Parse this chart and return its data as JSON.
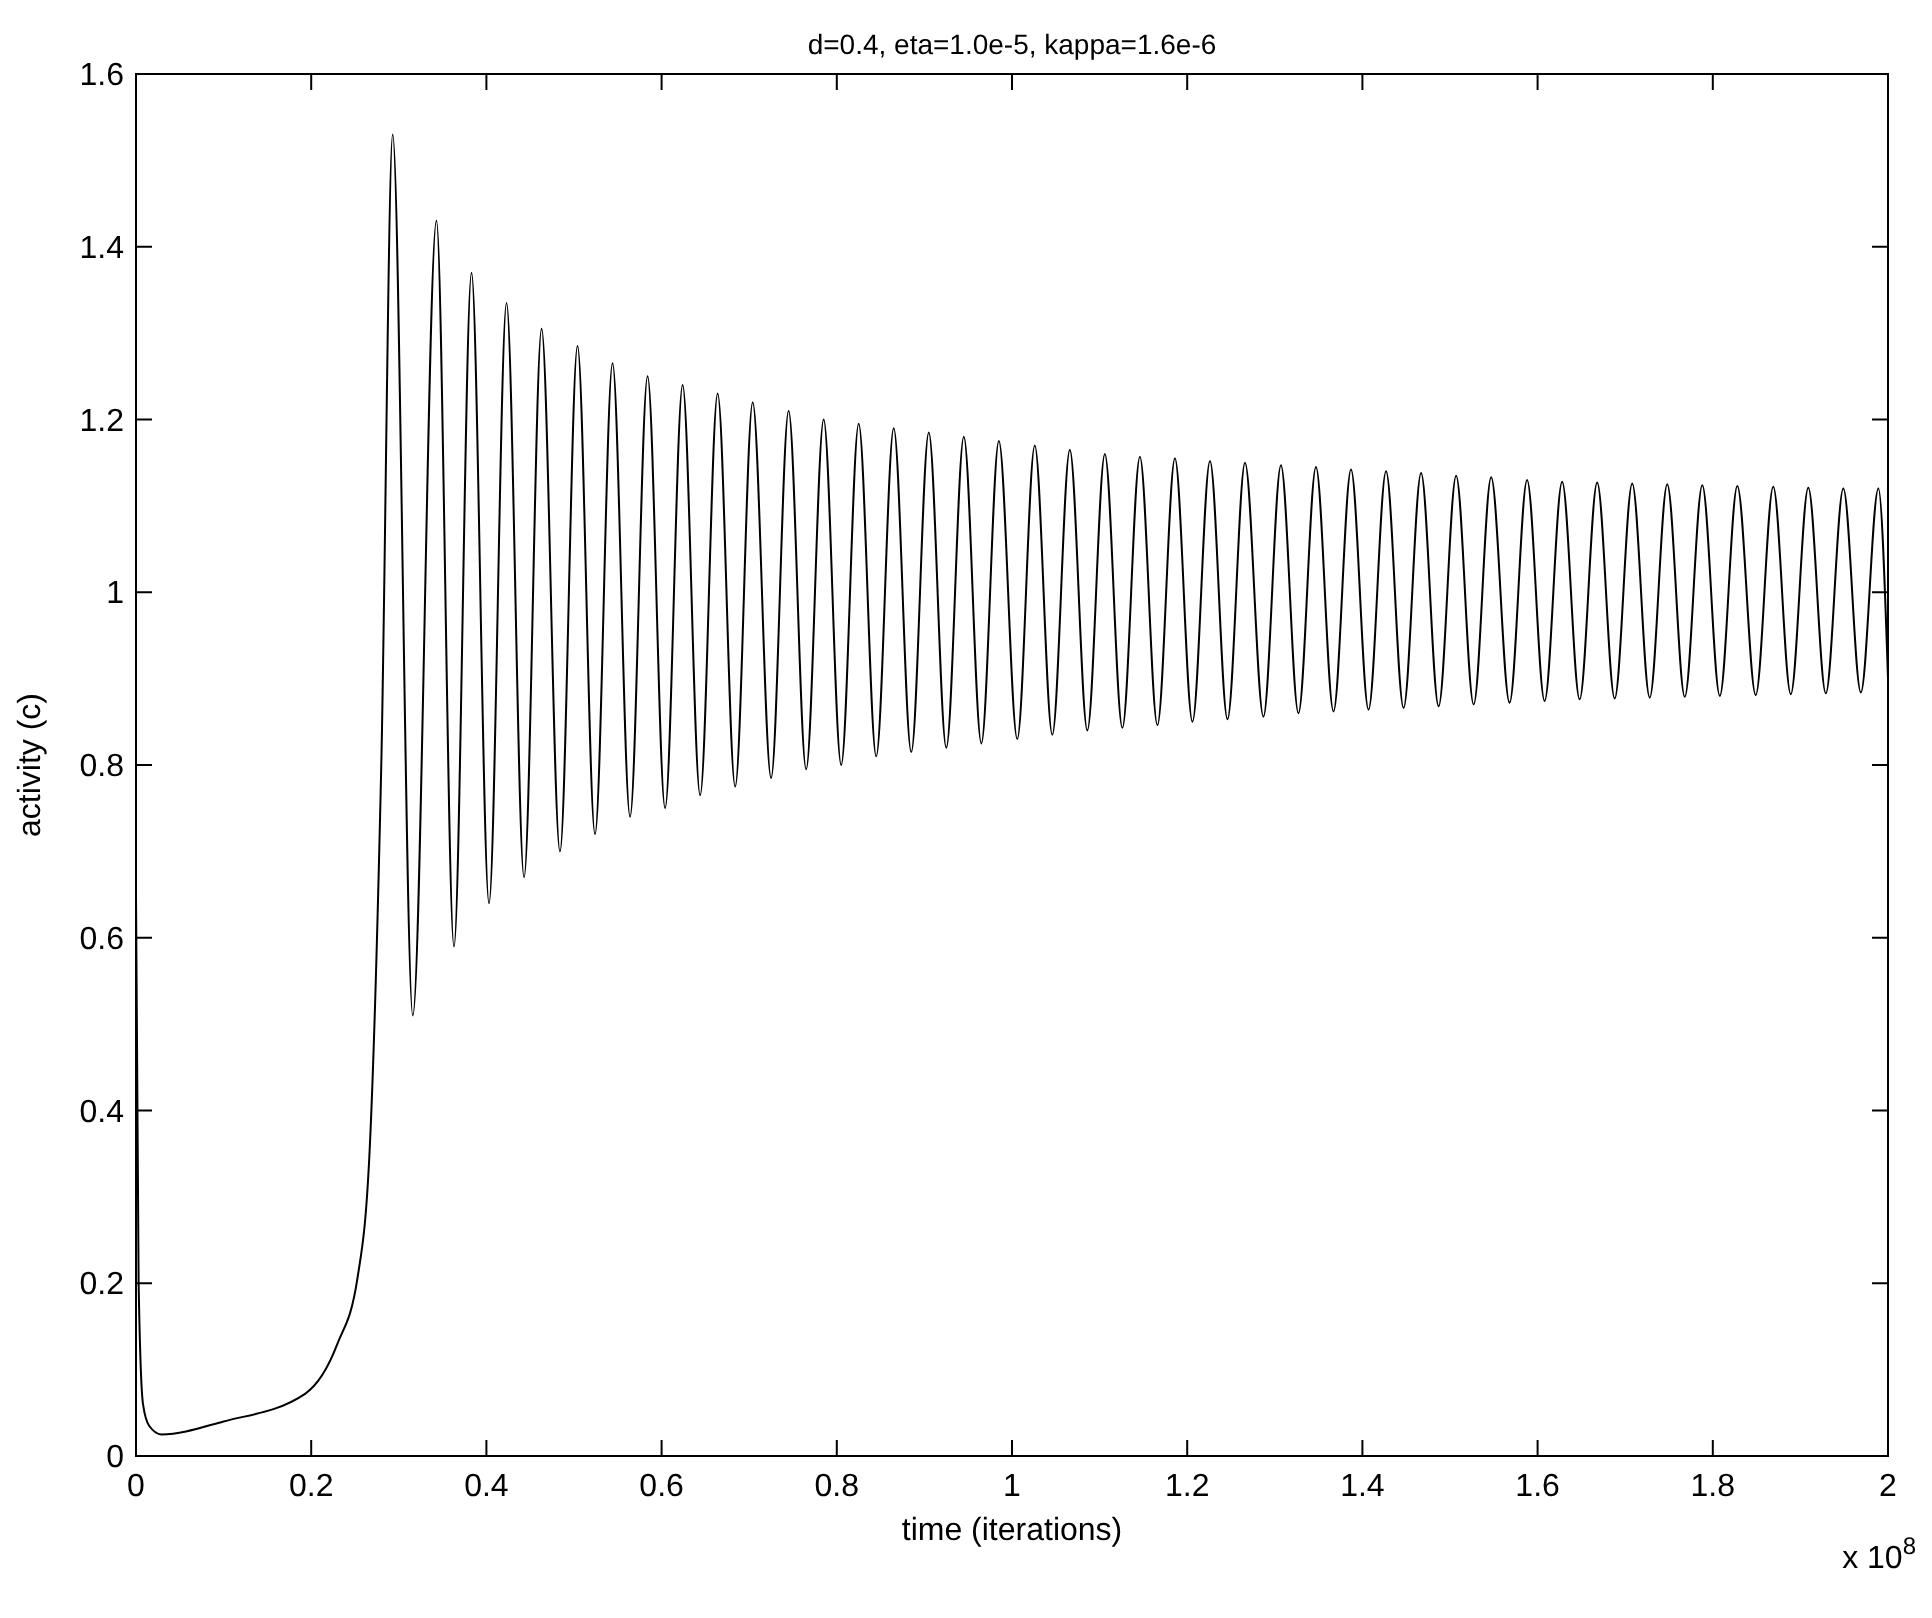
{
  "chart_data": {
    "type": "line",
    "title": "d=0.4, eta=1.0e-5, kappa=1.6e-6",
    "xlabel": "time (iterations)",
    "ylabel": "activity (c)",
    "annotations": [
      "x 10$^{8}$"
    ],
    "xlim": [
      0,
      2
    ],
    "xticks": [
      0,
      0.2,
      0.4,
      0.6,
      0.8,
      1,
      1.2,
      1.4,
      1.6,
      1.8,
      2
    ],
    "ylim": [
      0,
      1.6
    ],
    "yticks": [
      0,
      0.2,
      0.4,
      0.6,
      0.8,
      1,
      1.2,
      1.4,
      1.6
    ],
    "x": [
      0,
      0.003,
      0.008,
      0.015,
      0.029,
      0.1,
      0.193,
      0.23,
      0.253,
      0.267,
      0.28,
      0.293,
      0.316,
      0.343,
      0.363,
      0.383,
      0.403,
      0.423,
      0.443,
      0.463,
      0.484,
      0.504,
      0.524,
      0.544,
      0.564,
      0.584,
      0.604,
      0.624,
      0.644,
      0.664,
      0.684,
      0.704,
      0.725,
      0.745,
      0.765,
      0.785,
      0.805,
      0.825,
      0.845,
      0.865,
      0.885,
      0.905,
      0.925,
      0.945,
      0.965,
      0.985,
      1.006,
      1.026,
      1.046,
      1.066,
      1.086,
      1.106,
      1.126,
      1.146,
      1.166,
      1.186,
      1.206,
      1.226,
      1.246,
      1.266,
      1.287,
      1.307,
      1.327,
      1.347,
      1.367,
      1.387,
      1.407,
      1.427,
      1.447,
      1.467,
      1.487,
      1.507,
      1.527,
      1.547,
      1.568,
      1.588,
      1.608,
      1.628,
      1.648,
      1.668,
      1.688,
      1.708,
      1.728,
      1.748,
      1.768,
      1.788,
      1.808,
      1.828,
      1.849,
      1.869,
      1.889,
      1.909,
      1.929,
      1.949,
      1.969,
      1.989,
      2
    ],
    "series": [
      {
        "color": "#000000",
        "values": [
          0.65,
          0.2,
          0.06,
          0.035,
          0.025,
          0.04,
          0.072,
          0.13,
          0.207,
          0.36,
          0.8,
          1.53,
          0.51,
          1.43,
          0.59,
          1.37,
          0.64,
          1.335,
          0.67,
          1.305,
          0.7,
          1.285,
          0.72,
          1.265,
          0.74,
          1.25,
          0.75,
          1.24,
          0.765,
          1.23,
          0.775,
          1.22,
          0.785,
          1.21,
          0.795,
          1.2,
          0.8,
          1.195,
          0.81,
          1.19,
          0.815,
          1.185,
          0.82,
          1.18,
          0.825,
          1.175,
          0.83,
          1.17,
          0.835,
          1.165,
          0.84,
          1.16,
          0.843,
          1.157,
          0.846,
          1.155,
          0.85,
          1.152,
          0.853,
          1.15,
          0.856,
          1.147,
          0.86,
          1.145,
          0.862,
          1.142,
          0.864,
          1.14,
          0.866,
          1.138,
          0.868,
          1.135,
          0.87,
          1.133,
          0.872,
          1.13,
          0.874,
          1.128,
          0.876,
          1.127,
          0.877,
          1.126,
          0.878,
          1.125,
          0.879,
          1.124,
          0.88,
          1.123,
          0.881,
          1.122,
          0.882,
          1.121,
          0.883,
          1.12,
          0.884,
          1.12,
          0.9
        ]
      }
    ],
    "marker": "none",
    "line_style": "solid"
  }
}
